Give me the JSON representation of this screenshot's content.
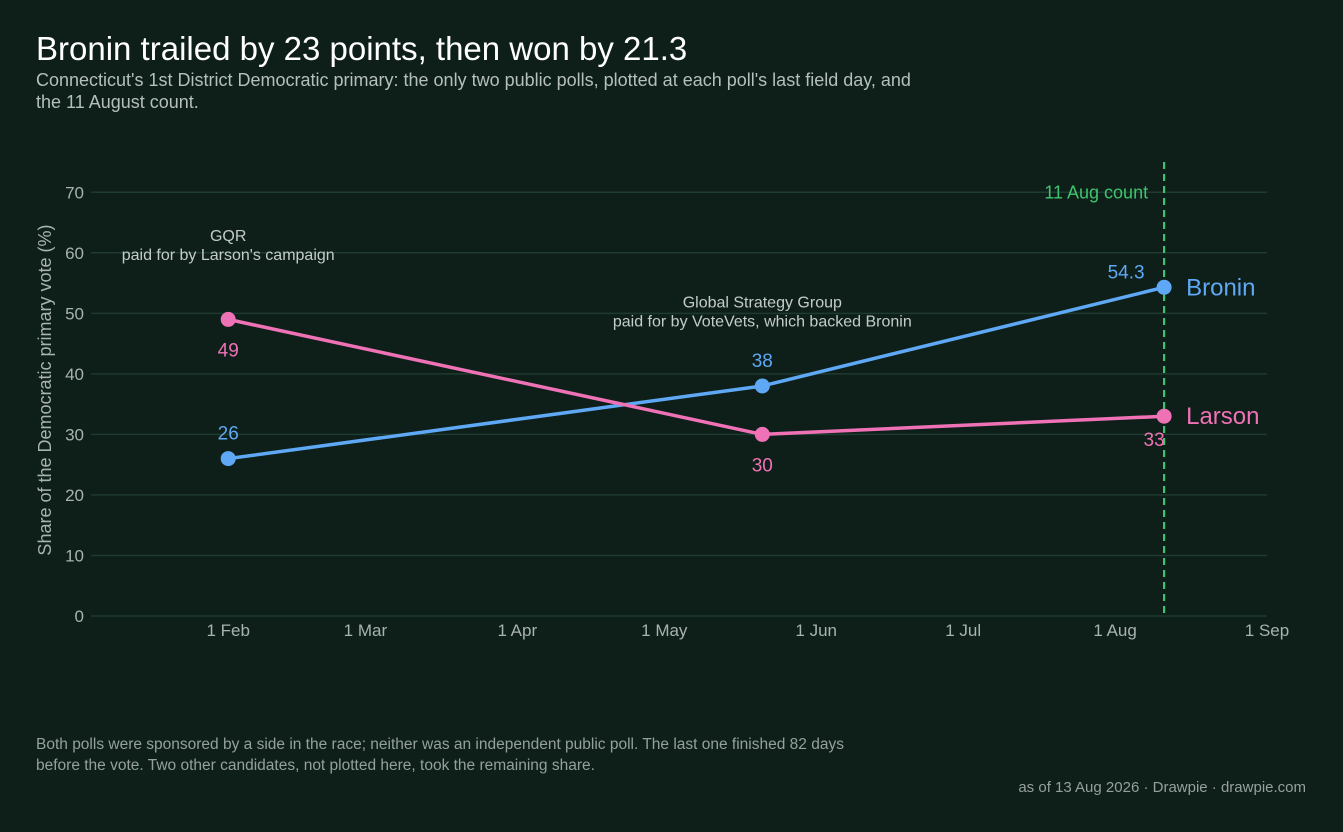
{
  "title": "Bronin trailed by 23 points, then won by 21.3",
  "subtitle": "Connecticut's 1st District Democratic primary: the only two public polls, plotted at each poll's last field day, and the 11 August count.",
  "footnote": "Both polls were sponsored by a side in the race; neither was an independent public poll. The last one finished 82 days before the vote. Two other candidates, not plotted here, took the remaining share.",
  "credit": "as of 13 Aug 2026  ·  Drawpie · drawpie.com",
  "chart_data": {
    "type": "line",
    "ylabel": "Share of the Democratic primary vote (%)",
    "xlabel": "",
    "ylim": [
      0,
      75
    ],
    "xlim": [
      "2026-01-04",
      "2026-09-01"
    ],
    "grid": true,
    "y_ticks": [
      0,
      10,
      20,
      30,
      40,
      50,
      60,
      70
    ],
    "x_ticks": [
      {
        "date": "2026-02-01",
        "label": "1 Feb"
      },
      {
        "date": "2026-03-01",
        "label": "1 Mar"
      },
      {
        "date": "2026-04-01",
        "label": "1 Apr"
      },
      {
        "date": "2026-05-01",
        "label": "1 May"
      },
      {
        "date": "2026-06-01",
        "label": "1 Jun"
      },
      {
        "date": "2026-07-01",
        "label": "1 Jul"
      },
      {
        "date": "2026-08-01",
        "label": "1 Aug"
      },
      {
        "date": "2026-09-01",
        "label": "1 Sep"
      }
    ],
    "series": [
      {
        "name": "Bronin",
        "color": "#5fa8f5",
        "points": [
          {
            "x": "2026-02-01",
            "y": 26,
            "label": "26"
          },
          {
            "x": "2026-05-21",
            "y": 38,
            "label": "38"
          },
          {
            "x": "2026-08-11",
            "y": 54.3,
            "label": "54.3"
          }
        ]
      },
      {
        "name": "Larson",
        "color": "#f072b6",
        "points": [
          {
            "x": "2026-02-01",
            "y": 49,
            "label": "49"
          },
          {
            "x": "2026-05-21",
            "y": 30,
            "label": "30"
          },
          {
            "x": "2026-08-11",
            "y": 33,
            "label": "33"
          }
        ]
      }
    ],
    "reference_line": {
      "x": "2026-08-11",
      "label": "11 Aug count",
      "color": "#3ec46d"
    },
    "annotations": [
      {
        "x": "2026-02-01",
        "y": 60,
        "lines": [
          "GQR",
          "paid for by Larson's campaign"
        ]
      },
      {
        "x": "2026-05-21",
        "y": 49,
        "lines": [
          "Global Strategy Group",
          "paid for by VoteVets, which backed Bronin"
        ]
      }
    ]
  }
}
